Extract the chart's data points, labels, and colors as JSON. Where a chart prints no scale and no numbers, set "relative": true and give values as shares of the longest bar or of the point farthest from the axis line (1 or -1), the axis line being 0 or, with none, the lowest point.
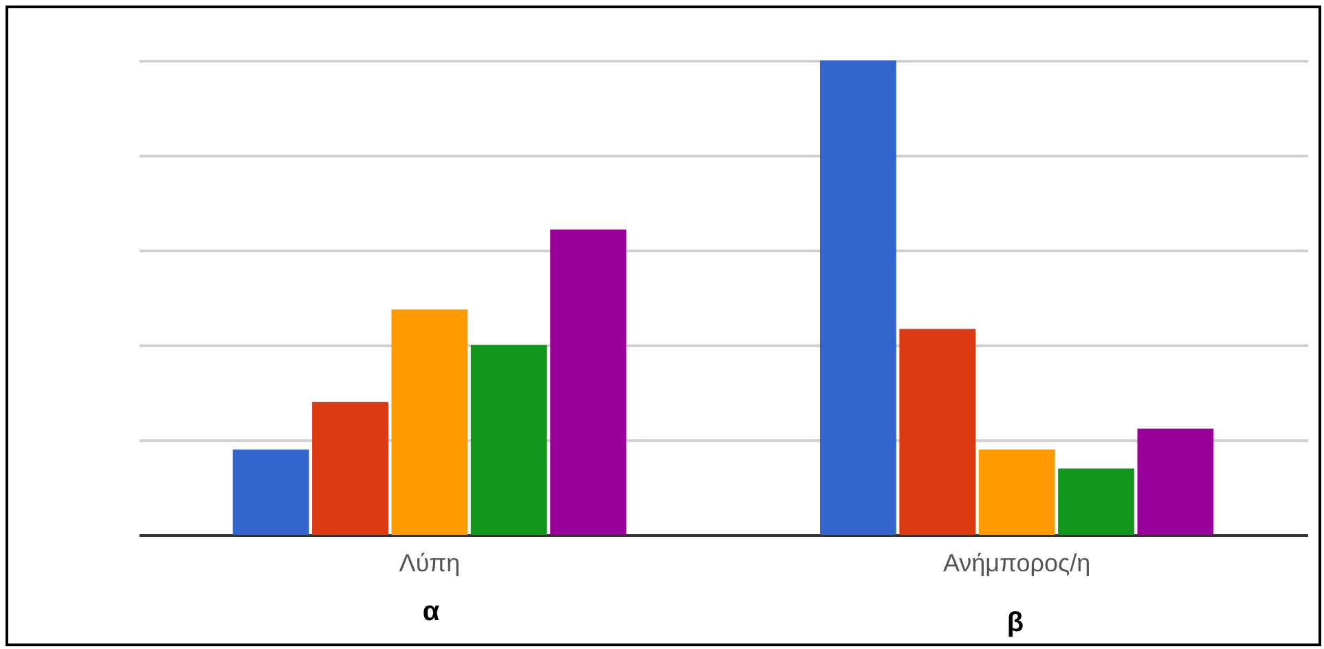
{
  "chart_data": {
    "type": "bar",
    "relative": true,
    "categories": [
      "Λύπη",
      "Ανήμπορος/η"
    ],
    "series": [
      {
        "color": "#3366cc",
        "values": [
          0.18,
          1
        ]
      },
      {
        "color": "#dc3912",
        "values": [
          0.28,
          0.434
        ]
      },
      {
        "color": "#ff9900",
        "values": [
          0.475,
          0.18
        ]
      },
      {
        "color": "#109618",
        "values": [
          0.4,
          0.14
        ]
      },
      {
        "color": "#990099",
        "values": [
          0.644,
          0.224
        ]
      }
    ],
    "grid": "y",
    "legend": false,
    "annotations": [
      "α",
      "β"
    ]
  }
}
